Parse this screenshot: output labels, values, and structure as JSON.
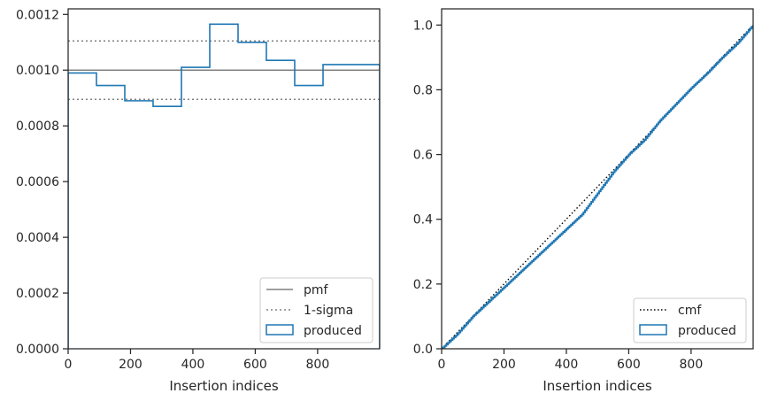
{
  "chart_data": [
    {
      "type": "histogram",
      "xlabel": "Insertion indices",
      "ylabel": "",
      "xlim": [
        0,
        999
      ],
      "ylim": [
        0,
        0.00122
      ],
      "xticks": [
        "0",
        "200",
        "400",
        "600",
        "800"
      ],
      "yticks": [
        "0.0000",
        "0.0002",
        "0.0004",
        "0.0006",
        "0.0008",
        "0.0010",
        "0.0012"
      ],
      "grid": false,
      "legend_position": "lower-right",
      "reference_lines": [
        {
          "name": "pmf",
          "value": 0.001,
          "style": "solid",
          "color": "#808080"
        },
        {
          "name": "1-sigma",
          "values": [
            0.000895,
            0.001105
          ],
          "style": "dotted",
          "color": "#808080"
        }
      ],
      "series": [
        {
          "name": "produced",
          "color": "#1f77b4",
          "bin_edges": [
            0,
            90.8,
            181.6,
            272.4,
            363.3,
            454.1,
            544.9,
            635.7,
            726.5,
            817.4,
            908.2,
            999
          ],
          "values": [
            0.00099,
            0.000945,
            0.00089,
            0.00087,
            0.00101,
            0.001165,
            0.0011,
            0.001035,
            0.000945,
            0.00102,
            0.00102
          ]
        }
      ]
    },
    {
      "type": "line",
      "xlabel": "Insertion indices",
      "ylabel": "",
      "xlim": [
        0,
        999
      ],
      "ylim": [
        0,
        1.05
      ],
      "xticks": [
        "0",
        "200",
        "400",
        "600",
        "800"
      ],
      "yticks": [
        "0.0",
        "0.2",
        "0.4",
        "0.6",
        "0.8",
        "1.0"
      ],
      "grid": false,
      "legend_position": "lower-right",
      "series": [
        {
          "name": "cmf",
          "style": "dotted",
          "color": "#000000",
          "x": [
            0,
            999
          ],
          "y": [
            0,
            1.0
          ]
        },
        {
          "name": "produced",
          "style": "step",
          "color": "#1f77b4",
          "x": [
            0,
            50,
            100,
            150,
            200,
            250,
            300,
            350,
            400,
            450,
            500,
            550,
            600,
            650,
            700,
            750,
            800,
            850,
            900,
            950,
            999
          ],
          "y": [
            0,
            0.045,
            0.1,
            0.145,
            0.19,
            0.235,
            0.28,
            0.325,
            0.37,
            0.415,
            0.48,
            0.545,
            0.6,
            0.645,
            0.705,
            0.755,
            0.805,
            0.85,
            0.9,
            0.945,
            1.0
          ]
        }
      ]
    }
  ]
}
